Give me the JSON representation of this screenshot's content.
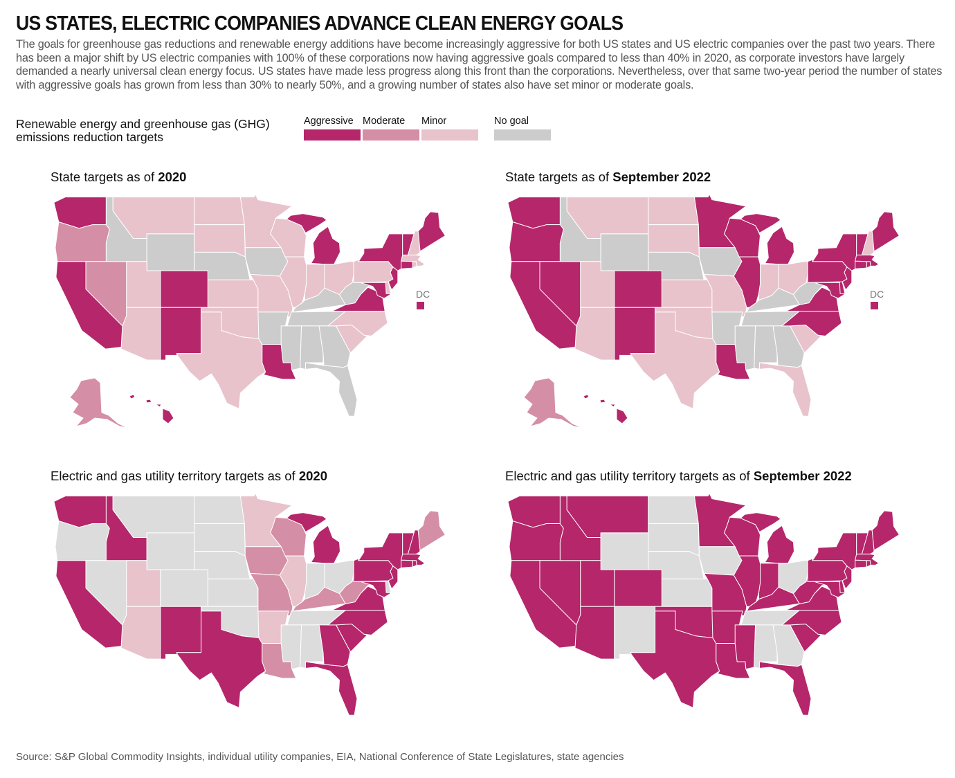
{
  "title": "US STATES, ELECTRIC COMPANIES ADVANCE CLEAN ENERGY GOALS",
  "description": "The goals for greenhouse gas reductions and renewable energy additions have become increasingly aggressive for both US states and US electric companies over the past two years. There has been a major shift by US electric companies with 100% of these corporations now having aggressive goals compared to less than 40% in 2020, as corporate investors have largely demanded a nearly universal clean energy focus. US states have made less progress along this front than the corporations. Nevertheless, over that same two-year period the number of states with aggressive goals has grown from less than 30% to nearly 50%, and a growing number of states also have set minor or moderate goals.",
  "legend": {
    "label": "Renewable energy and greenhouse gas (GHG) emissions reduction targets",
    "items": [
      {
        "key": "agg",
        "label": "Aggressive",
        "color": "#b5266a"
      },
      {
        "key": "mod",
        "label": "Moderate",
        "color": "#d48ea5"
      },
      {
        "key": "min",
        "label": "Minor",
        "color": "#e8c3cc"
      },
      {
        "key": "none",
        "label": "No goal",
        "color": "#cccccd"
      }
    ]
  },
  "dc_label": "DC",
  "maps": [
    {
      "title_prefix": "State targets as of ",
      "title_bold": "2020",
      "dc": "agg",
      "states": {
        "WA": "agg",
        "OR": "mod",
        "CA": "agg",
        "NV": "mod",
        "ID": "none",
        "MT": "min",
        "WY": "none",
        "UT": "min",
        "AZ": "min",
        "CO": "agg",
        "NM": "agg",
        "ND": "min",
        "SD": "min",
        "NE": "none",
        "KS": "min",
        "OK": "min",
        "TX": "min",
        "MN": "min",
        "IA": "none",
        "MO": "min",
        "AR": "none",
        "LA": "agg",
        "WI": "min",
        "IL": "min",
        "MI": "agg",
        "IN": "min",
        "OH": "min",
        "KY": "none",
        "TN": "none",
        "MS": "none",
        "AL": "none",
        "GA": "none",
        "FL": "none",
        "SC": "min",
        "NC": "min",
        "VA": "agg",
        "WV": "none",
        "PA": "min",
        "NY": "agg",
        "VT": "agg",
        "NH": "min",
        "ME": "agg",
        "MA": "min",
        "RI": "min",
        "CT": "agg",
        "NJ": "agg",
        "DE": "min",
        "MD": "agg",
        "AK": "mod",
        "HI": "agg"
      }
    },
    {
      "title_prefix": "State targets as of ",
      "title_bold": "September 2022",
      "dc": "agg",
      "states": {
        "WA": "agg",
        "OR": "agg",
        "CA": "agg",
        "NV": "agg",
        "ID": "none",
        "MT": "min",
        "WY": "none",
        "UT": "min",
        "AZ": "min",
        "CO": "agg",
        "NM": "agg",
        "ND": "min",
        "SD": "min",
        "NE": "none",
        "KS": "min",
        "OK": "min",
        "TX": "min",
        "MN": "agg",
        "IA": "none",
        "MO": "min",
        "AR": "none",
        "LA": "agg",
        "WI": "agg",
        "IL": "agg",
        "MI": "agg",
        "IN": "min",
        "OH": "min",
        "KY": "none",
        "TN": "none",
        "MS": "none",
        "AL": "none",
        "GA": "none",
        "FL": "min",
        "SC": "min",
        "NC": "agg",
        "VA": "agg",
        "WV": "none",
        "PA": "agg",
        "NY": "agg",
        "VT": "agg",
        "NH": "min",
        "ME": "agg",
        "MA": "agg",
        "RI": "agg",
        "CT": "agg",
        "NJ": "agg",
        "DE": "agg",
        "MD": "agg",
        "AK": "mod",
        "HI": "agg"
      }
    },
    {
      "title_prefix": "Electric and gas utility territory targets as of ",
      "title_bold": "2020",
      "states": {
        "WA": "agg",
        "OR": "none",
        "CA": "agg",
        "NV": "none",
        "ID": "agg",
        "MT": "none",
        "WY": "none",
        "UT": "min",
        "AZ": "min",
        "CO": "none",
        "NM": "agg",
        "ND": "none",
        "SD": "none",
        "NE": "none",
        "KS": "none",
        "OK": "none",
        "TX": "agg",
        "MN": "min",
        "IA": "mod",
        "MO": "mod",
        "AR": "min",
        "LA": "mod",
        "WI": "mod",
        "IL": "min",
        "MI": "agg",
        "IN": "none",
        "OH": "none",
        "KY": "mod",
        "TN": "none",
        "MS": "none",
        "AL": "none",
        "GA": "agg",
        "FL": "agg",
        "SC": "agg",
        "NC": "agg",
        "VA": "agg",
        "WV": "mod",
        "PA": "agg",
        "NY": "agg",
        "VT": "agg",
        "NH": "agg",
        "ME": "mod",
        "MA": "agg",
        "RI": "agg",
        "CT": "agg",
        "NJ": "agg",
        "DE": "none",
        "MD": "agg"
      }
    },
    {
      "title_prefix": "Electric and gas utility territory targets as of ",
      "title_bold": "September 2022",
      "states": {
        "WA": "agg",
        "OR": "agg",
        "CA": "agg",
        "NV": "agg",
        "ID": "agg",
        "MT": "agg",
        "WY": "none",
        "UT": "agg",
        "AZ": "agg",
        "CO": "agg",
        "NM": "none",
        "ND": "none",
        "SD": "none",
        "NE": "none",
        "KS": "none",
        "OK": "agg",
        "TX": "agg",
        "MN": "agg",
        "IA": "none",
        "MO": "agg",
        "AR": "agg",
        "LA": "agg",
        "WI": "agg",
        "IL": "agg",
        "MI": "agg",
        "IN": "agg",
        "OH": "none",
        "KY": "agg",
        "TN": "none",
        "MS": "agg",
        "AL": "none",
        "GA": "none",
        "FL": "agg",
        "SC": "agg",
        "NC": "agg",
        "VA": "agg",
        "WV": "agg",
        "PA": "agg",
        "NY": "agg",
        "VT": "agg",
        "NH": "agg",
        "ME": "agg",
        "MA": "agg",
        "RI": "agg",
        "CT": "agg",
        "NJ": "agg",
        "DE": "agg",
        "MD": "agg"
      }
    }
  ],
  "source": "Source: S&P Global Commodity Insights, individual utility companies, EIA, National Conference of State Legislatures, state agencies"
}
